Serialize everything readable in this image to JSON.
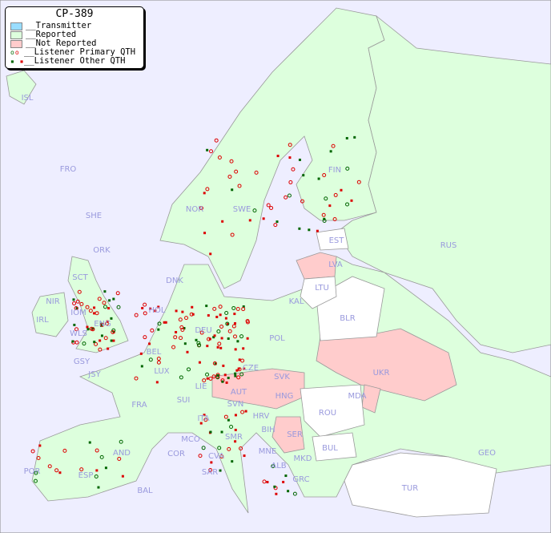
{
  "title": "CP-389",
  "legend": [
    {
      "label": "__Transmitter",
      "color": "#99ddff"
    },
    {
      "label": "__Reported",
      "color": "#ddffdd"
    },
    {
      "label": "__Not Reported",
      "color": "#ffcccc"
    },
    {
      "label": "__Listener Primary QTH",
      "colors": [
        "#006600",
        "#dd0000"
      ],
      "marker": "circle"
    },
    {
      "label": "__Listener Other QTH",
      "colors": [
        "#006600",
        "#dd0000"
      ],
      "marker": "square"
    }
  ],
  "colors": {
    "sea": "#eeeeff",
    "reported": "#ddffdd",
    "not_reported": "#ffcccc",
    "unreported_white": "#ffffff",
    "label": "#9999dd"
  },
  "countries": [
    "ISL",
    "FRO",
    "SHE",
    "ORK",
    "NOR",
    "SWE",
    "FIN",
    "RUS",
    "EST",
    "LVA",
    "LTU",
    "KAL",
    "BLR",
    "DNK",
    "SCT",
    "NIR",
    "IRL",
    "IOM",
    "ENG",
    "WLS",
    "HOL",
    "BEL",
    "DEU",
    "POL",
    "LUX",
    "GSY",
    "JSY",
    "FRA",
    "SUI",
    "LIE",
    "AUT",
    "CZE",
    "SVK",
    "HNG",
    "UKR",
    "MDA",
    "ROU",
    "SVN",
    "HRV",
    "BIH",
    "SER",
    "MNE",
    "ALB",
    "MKD",
    "BUL",
    "GRC",
    "TUR",
    "GEO",
    "ITA",
    "SMR",
    "MCO",
    "COR",
    "CVA",
    "SAR",
    "AND",
    "ESP",
    "POR",
    "BAL"
  ],
  "not_reported": [
    "LVA",
    "SVK",
    "HNG",
    "AUT",
    "UKR",
    "SER",
    "MDA"
  ]
}
